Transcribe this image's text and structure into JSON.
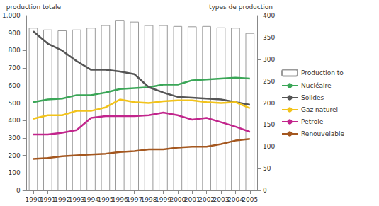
{
  "chart_data": {
    "type": "bar",
    "y_label": "production totale",
    "y2_label": "types de production",
    "categories": [
      "1990",
      "1991",
      "1992",
      "1993",
      "1994",
      "1995",
      "1996",
      "1997",
      "1998",
      "1999",
      "2000",
      "2001",
      "2002",
      "2003",
      "2004",
      "2005"
    ],
    "series": [
      {
        "name": "Production to",
        "type": "bar",
        "color": "#ffffff",
        "values": [
          930,
          920,
          915,
          920,
          930,
          945,
          975,
          965,
          945,
          945,
          940,
          938,
          940,
          932,
          930,
          900
        ]
      },
      {
        "name": "Nucléaire",
        "type": "line",
        "axis": "y2",
        "color": "#3aa657",
        "values": [
          202,
          208,
          210,
          218,
          218,
          224,
          232,
          234,
          236,
          242,
          242,
          252,
          254,
          256,
          258,
          256
        ]
      },
      {
        "name": "Solides",
        "type": "line",
        "axis": "y2",
        "color": "#555555",
        "values": [
          364,
          336,
          320,
          296,
          276,
          276,
          272,
          266,
          236,
          224,
          214,
          212,
          210,
          208,
          202,
          196
        ]
      },
      {
        "name": "Gaz naturel",
        "type": "line",
        "axis": "y2",
        "color": "#f2c31b",
        "values": [
          164,
          172,
          172,
          182,
          182,
          190,
          208,
          202,
          200,
          204,
          206,
          206,
          202,
          200,
          202,
          188
        ]
      },
      {
        "name": "Petrole",
        "type": "line",
        "axis": "y2",
        "color": "#c2258c",
        "values": [
          128,
          128,
          132,
          138,
          166,
          170,
          170,
          170,
          172,
          178,
          172,
          162,
          166,
          156,
          146,
          134
        ]
      },
      {
        "name": "Renouvelable",
        "type": "line",
        "axis": "y2",
        "color": "#a4571f",
        "values": [
          72,
          74,
          78,
          80,
          82,
          84,
          88,
          90,
          94,
          94,
          98,
          100,
          100,
          106,
          114,
          118
        ]
      }
    ],
    "ylim": [
      0,
      1000
    ],
    "yticks": [
      0,
      100,
      200,
      300,
      400,
      500,
      600,
      700,
      800,
      900,
      1000
    ],
    "y2lim": [
      0,
      400
    ],
    "y2ticks": [
      0,
      50,
      100,
      150,
      200,
      250,
      300,
      350,
      400
    ],
    "grid": false,
    "legend": "right"
  }
}
